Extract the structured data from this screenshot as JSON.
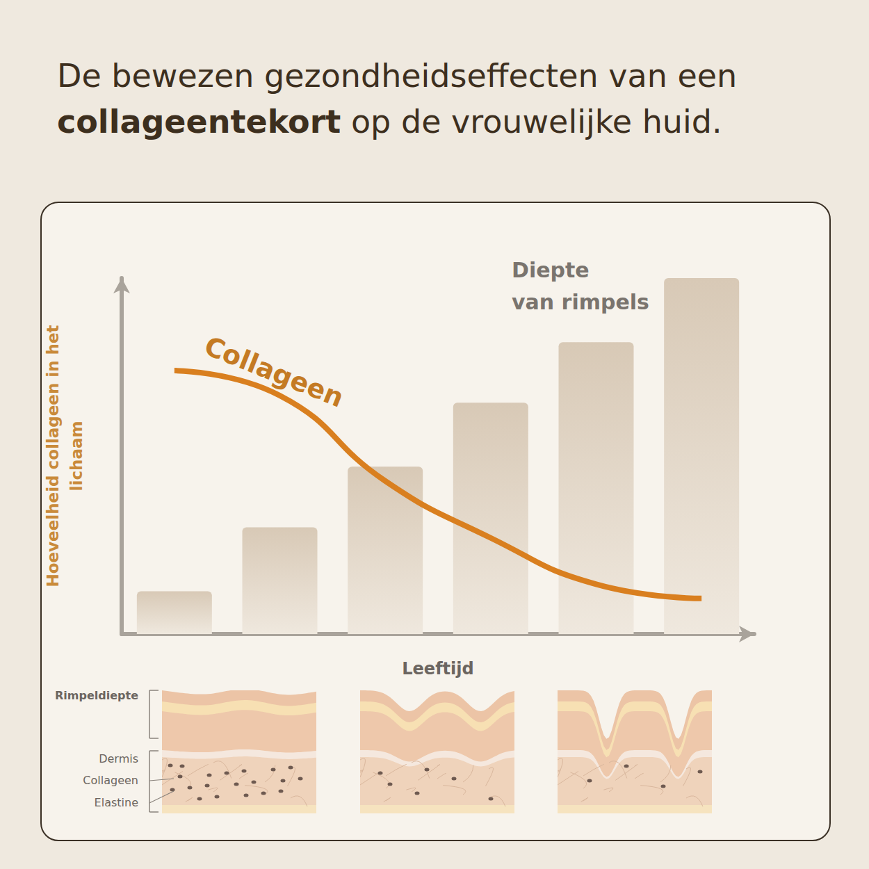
{
  "header": {
    "title_before": "De bewezen gezondheidseffecten van een",
    "title_bold": "collageentekort",
    "title_after": "op de vrouwelijke huid."
  },
  "chart_data": {
    "type": "bar",
    "x_label": "Leeftijd",
    "y_label": "Hoeveelheid collageen in het lichaam",
    "categories": [
      null,
      null,
      null,
      null,
      null,
      null
    ],
    "series": [
      {
        "name": "Diepte van rimpels",
        "type": "bar",
        "color": "#d8c9b6",
        "values": [
          12,
          30,
          47,
          65,
          82,
          100
        ]
      },
      {
        "name": "Collageen",
        "type": "line",
        "color": "#d97f1f",
        "values": [
          74,
          67,
          43,
          27,
          14,
          10
        ]
      }
    ],
    "ylim": [
      0,
      100
    ],
    "tick_labels": false,
    "grid": false
  },
  "diagram": {
    "labels": [
      "Rimpeldiepte",
      "Dermis",
      "Collageen",
      "Elastine"
    ]
  }
}
